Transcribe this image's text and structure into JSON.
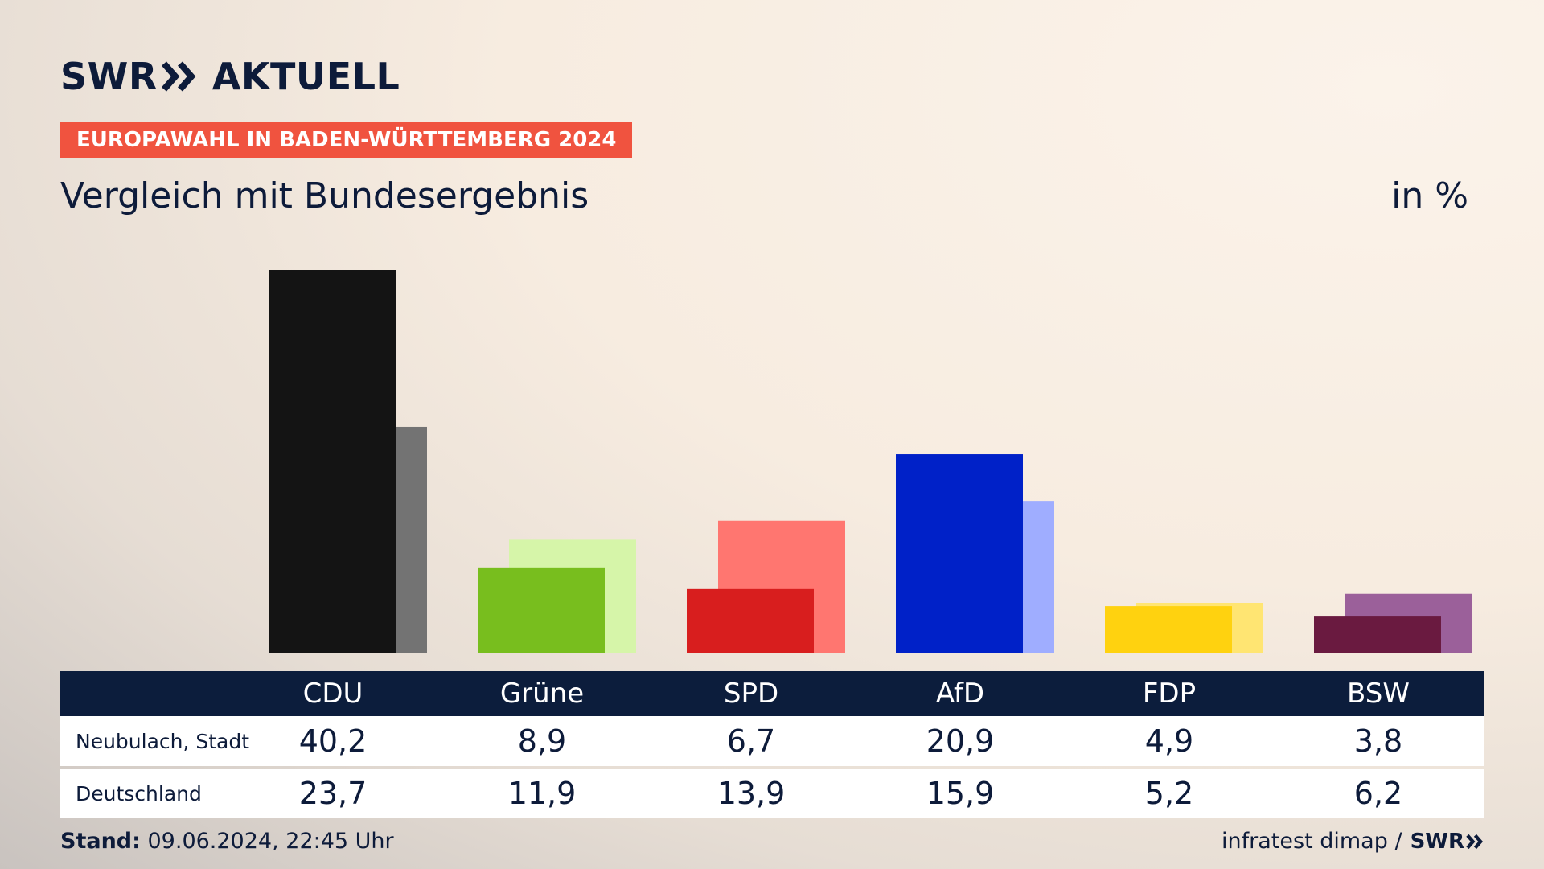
{
  "brand": {
    "logo_text": "SWR",
    "logo_suffix": "AKTUELL",
    "logo_icon": "chevron-double-icon"
  },
  "header": {
    "badge": "EUROPAWAHL IN BADEN-WÜRTTEMBERG 2024",
    "subtitle": "Vergleich mit Bundesergebnis",
    "unit": "in %",
    "badge_color": "#f0533f"
  },
  "chart_data": {
    "type": "bar",
    "title": "Vergleich mit Bundesergebnis",
    "unit": "in %",
    "categories": [
      "CDU",
      "Grüne",
      "SPD",
      "AfD",
      "FDP",
      "BSW"
    ],
    "series": [
      {
        "name": "Neubulach, Stadt",
        "values": [
          40.2,
          8.9,
          6.7,
          20.9,
          4.9,
          3.8
        ],
        "colors": [
          "#141414",
          "#78be1e",
          "#d81e1e",
          "#0021c8",
          "#ffd20f",
          "#6a1a40"
        ]
      },
      {
        "name": "Deutschland",
        "values": [
          23.7,
          11.9,
          13.9,
          15.9,
          5.2,
          6.2
        ],
        "colors": [
          "#737373",
          "#d6f5a9",
          "#ff7670",
          "#9fadff",
          "#ffe572",
          "#9b609a"
        ]
      }
    ],
    "ylim": [
      0,
      40.2
    ],
    "grid": false,
    "legend": "table-below"
  },
  "table": {
    "rows": [
      {
        "label": "Neubulach, Stadt",
        "values": [
          "40,2",
          "8,9",
          "6,7",
          "20,9",
          "4,9",
          "3,8"
        ]
      },
      {
        "label": "Deutschland",
        "values": [
          "23,7",
          "11,9",
          "13,9",
          "15,9",
          "5,2",
          "6,2"
        ]
      }
    ]
  },
  "footer": {
    "stand_label": "Stand:",
    "stand_value": " 09.06.2024, 22:45 Uhr",
    "source": "infratest dimap /",
    "source_logo": "SWR"
  }
}
